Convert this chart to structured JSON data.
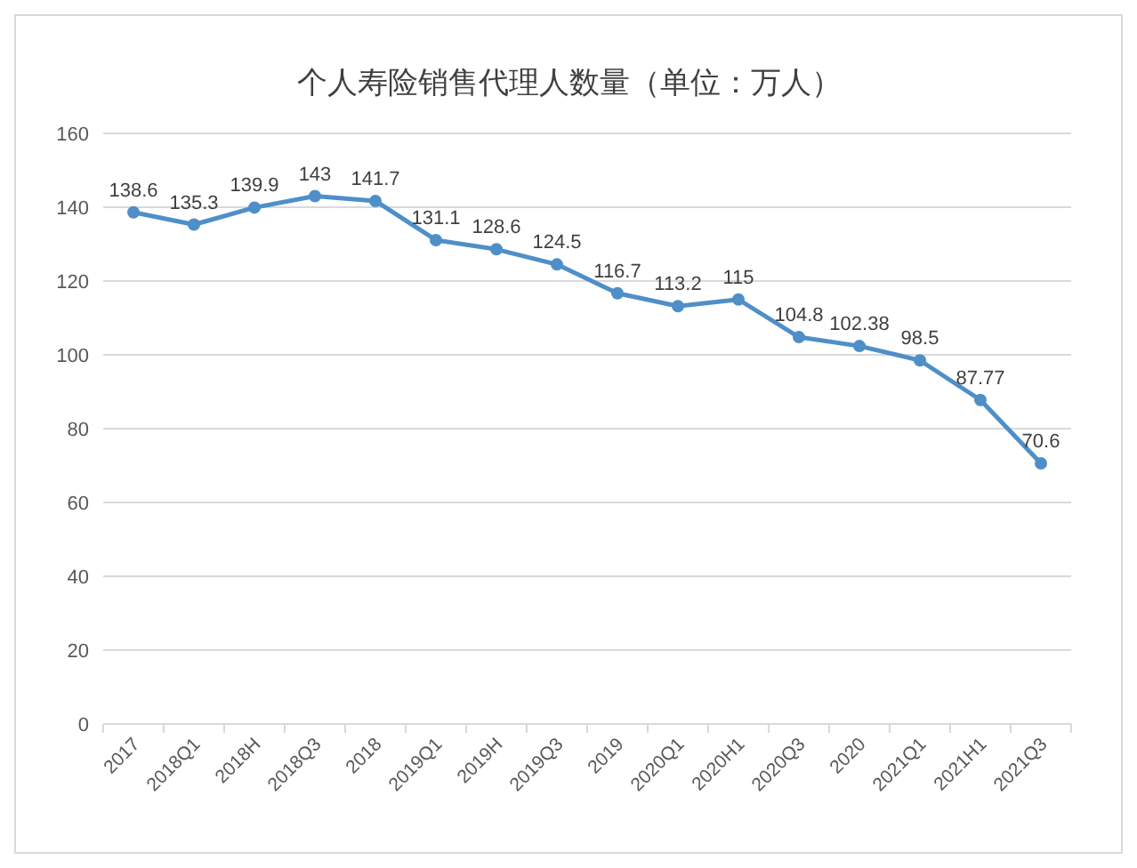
{
  "chart_data": {
    "type": "line",
    "title": "个人寿险销售代理人数量（单位：万人）",
    "categories": [
      "2017",
      "2018Q1",
      "2018H",
      "2018Q3",
      "2018",
      "2019Q1",
      "2019H",
      "2019Q3",
      "2019",
      "2020Q1",
      "2020H1",
      "2020Q3",
      "2020",
      "2021Q1",
      "2021H1",
      "2021Q3"
    ],
    "values": [
      138.6,
      135.3,
      139.9,
      143,
      141.7,
      131.1,
      128.6,
      124.5,
      116.7,
      113.2,
      115,
      104.8,
      102.38,
      98.5,
      87.77,
      70.6
    ],
    "color": "#4f8fc8",
    "ylim": [
      0,
      160
    ],
    "yticks": [
      0,
      20,
      40,
      60,
      80,
      100,
      120,
      140,
      160
    ],
    "grid": "y",
    "marker": "circle",
    "data_labels": true
  }
}
